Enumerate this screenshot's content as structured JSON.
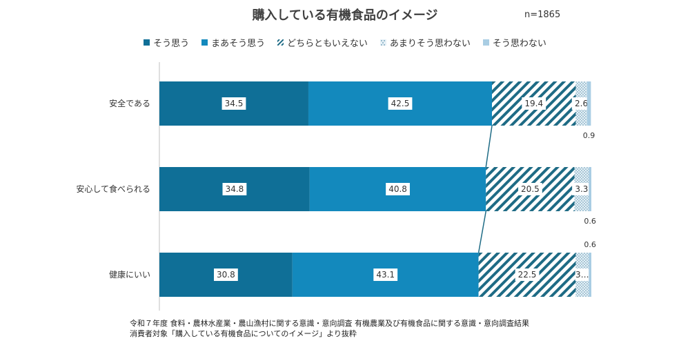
{
  "title": "購入している有機食品のイメージ",
  "sample_size": "n=1865",
  "colors": [
    "#0f6f97",
    "#1389bd",
    "pattern-diagonal",
    "pattern-dots",
    "#a9cde3"
  ],
  "chart_data": {
    "type": "bar",
    "orientation": "horizontal",
    "stacked": "100%",
    "categories": [
      "安全である",
      "安心して食べられる",
      "健康にいい"
    ],
    "series": [
      {
        "name": "そう思う",
        "values": [
          34.5,
          34.8,
          30.8
        ]
      },
      {
        "name": "まあそう思う",
        "values": [
          42.5,
          40.8,
          43.1
        ]
      },
      {
        "name": "どちらともいえない",
        "values": [
          19.4,
          20.5,
          22.5
        ]
      },
      {
        "name": "あまりそう思わない",
        "values": [
          2.6,
          3.3,
          3.0
        ]
      },
      {
        "name": "そう思わない",
        "values": [
          0.9,
          0.6,
          0.6
        ]
      }
    ],
    "value_labels": [
      [
        "34.5",
        "42.5",
        "19.4",
        "2.6",
        "0.9"
      ],
      [
        "34.8",
        "40.8",
        "20.5",
        "3.3",
        "0.6"
      ],
      [
        "30.8",
        "43.1",
        "22.5",
        "3…",
        "0.6"
      ]
    ],
    "xlim": [
      0,
      100
    ],
    "grid": false,
    "legend_position": "top",
    "series_lines": true
  },
  "source_lines": [
    "令和７年度 食料・農林水産業・農山漁村に関する意識・意向調査 有機農業及び有機食品に関する意識・意向調査結果",
    "消費者対象「購入している有機食品についてのイメージ」より抜粋"
  ]
}
